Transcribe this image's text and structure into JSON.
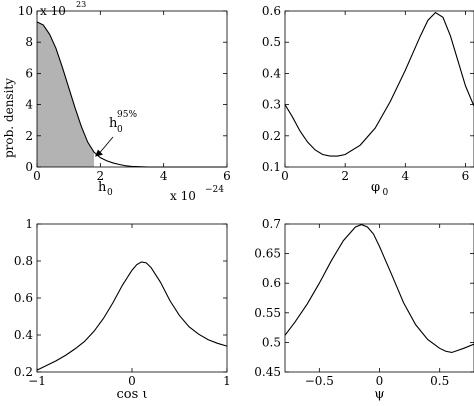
{
  "chart_data": [
    {
      "id": "h0",
      "type": "line",
      "ylabel": "prob. density",
      "xlabel": "h",
      "xlabel_sub": "0",
      "y_exponent_label": "x 10",
      "y_exponent": "23",
      "x_exponent_label": "x 10",
      "x_exponent": "−24",
      "xlim": [
        0,
        6
      ],
      "ylim": [
        0,
        10
      ],
      "xticks": [
        0,
        2,
        4,
        6
      ],
      "xtick_labels": [
        "0",
        "2",
        "4",
        "6"
      ],
      "yticks": [
        0,
        2,
        4,
        6,
        8,
        10
      ],
      "ytick_labels": [
        "0",
        "2",
        "4",
        "6",
        "8",
        "10"
      ],
      "shade_to_x": 1.8,
      "shade_color": "#b3b3b3",
      "annotation": {
        "text": "h",
        "sub": "0",
        "sup": "95%",
        "target_x": 1.8,
        "target_y": 0.6
      },
      "series": [
        {
          "x": [
            0,
            0.2,
            0.4,
            0.6,
            0.8,
            1.0,
            1.2,
            1.4,
            1.6,
            1.8,
            2.0,
            2.2,
            2.4,
            2.6,
            2.8,
            3.0,
            3.5,
            4.0,
            5.0,
            6.0
          ],
          "values": [
            9.3,
            9.1,
            8.5,
            7.6,
            6.4,
            5.1,
            3.8,
            2.6,
            1.6,
            0.95,
            0.6,
            0.4,
            0.26,
            0.16,
            0.08,
            0.04,
            0.0,
            0.0,
            0.0,
            0.0
          ]
        }
      ]
    },
    {
      "id": "phi0",
      "type": "line",
      "xlabel": "φ",
      "xlabel_sub": "0",
      "xlim": [
        0,
        6.283
      ],
      "ylim": [
        0.1,
        0.6
      ],
      "xticks": [
        0,
        2,
        4,
        6
      ],
      "xtick_labels": [
        "0",
        "2",
        "4",
        "6"
      ],
      "yticks": [
        0.1,
        0.2,
        0.3,
        0.4,
        0.5,
        0.6
      ],
      "ytick_labels": [
        "0.1",
        "0.2",
        "0.3",
        "0.4",
        "0.5",
        "0.6"
      ],
      "series": [
        {
          "x": [
            0,
            0.25,
            0.5,
            0.75,
            1.0,
            1.25,
            1.5,
            1.75,
            2.0,
            2.5,
            3.0,
            3.5,
            4.0,
            4.5,
            4.75,
            5.0,
            5.25,
            5.5,
            5.75,
            6.0,
            6.283
          ],
          "values": [
            0.3,
            0.26,
            0.215,
            0.18,
            0.155,
            0.14,
            0.135,
            0.135,
            0.14,
            0.17,
            0.225,
            0.31,
            0.41,
            0.52,
            0.57,
            0.595,
            0.58,
            0.52,
            0.44,
            0.36,
            0.295
          ]
        }
      ]
    },
    {
      "id": "cosi",
      "type": "line",
      "xlabel": "cos ι",
      "xlim": [
        -1,
        1
      ],
      "ylim": [
        0.2,
        1
      ],
      "xticks": [
        -1,
        0,
        1
      ],
      "xtick_labels": [
        "−1",
        "0",
        "1"
      ],
      "yticks": [
        0.2,
        0.4,
        0.6,
        0.8,
        1.0
      ],
      "ytick_labels": [
        "0.2",
        "0.4",
        "0.6",
        "0.8",
        "1"
      ],
      "series": [
        {
          "x": [
            -1.0,
            -0.9,
            -0.8,
            -0.7,
            -0.6,
            -0.5,
            -0.4,
            -0.3,
            -0.2,
            -0.1,
            0.0,
            0.05,
            0.1,
            0.15,
            0.2,
            0.3,
            0.4,
            0.5,
            0.6,
            0.7,
            0.8,
            0.9,
            1.0
          ],
          "values": [
            0.21,
            0.235,
            0.26,
            0.29,
            0.325,
            0.365,
            0.42,
            0.49,
            0.575,
            0.67,
            0.75,
            0.78,
            0.795,
            0.79,
            0.765,
            0.685,
            0.585,
            0.505,
            0.445,
            0.405,
            0.375,
            0.355,
            0.34
          ]
        }
      ]
    },
    {
      "id": "psi",
      "type": "line",
      "xlabel": "ψ",
      "xlim": [
        -0.785,
        0.785
      ],
      "ylim": [
        0.45,
        0.7
      ],
      "xticks": [
        -0.5,
        0,
        0.5
      ],
      "xtick_labels": [
        "−0.5",
        "0",
        "0.5"
      ],
      "yticks": [
        0.45,
        0.5,
        0.55,
        0.6,
        0.65,
        0.7
      ],
      "ytick_labels": [
        "0.45",
        "0.5",
        "0.55",
        "0.6",
        "0.65",
        "0.7"
      ],
      "series": [
        {
          "x": [
            -0.785,
            -0.7,
            -0.6,
            -0.5,
            -0.4,
            -0.3,
            -0.2,
            -0.15,
            -0.1,
            -0.05,
            0.0,
            0.1,
            0.2,
            0.3,
            0.4,
            0.5,
            0.55,
            0.6,
            0.7,
            0.785
          ],
          "values": [
            0.512,
            0.535,
            0.565,
            0.6,
            0.638,
            0.672,
            0.695,
            0.699,
            0.695,
            0.683,
            0.662,
            0.615,
            0.567,
            0.53,
            0.505,
            0.49,
            0.485,
            0.483,
            0.49,
            0.497
          ]
        }
      ]
    }
  ]
}
